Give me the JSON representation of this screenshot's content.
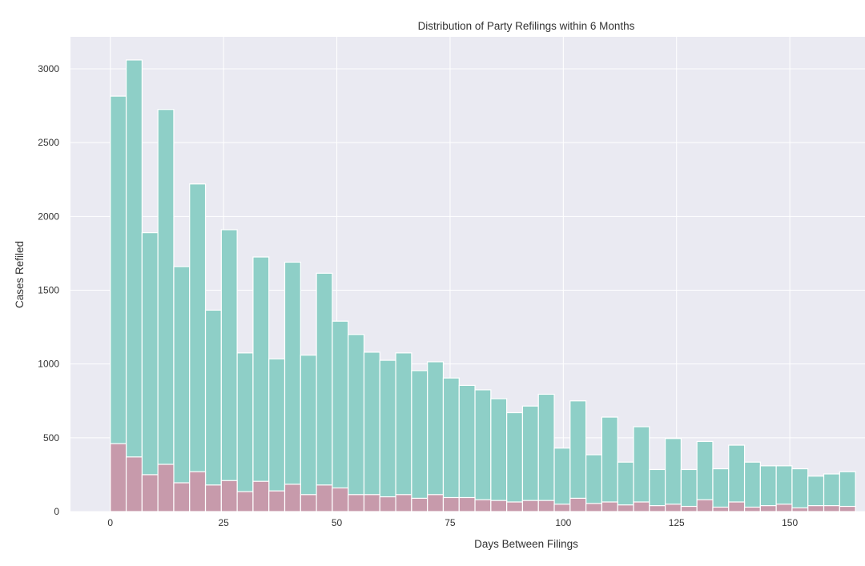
{
  "chart_data": {
    "type": "bar",
    "title": "Distribution of Party Refilings within 6 Months",
    "xlabel": "Days Between Filings",
    "ylabel": "Cases Refiled",
    "xlim": [
      -8.8,
      166.6
    ],
    "ylim": [
      0,
      3217
    ],
    "xticks": [
      0,
      25,
      50,
      75,
      100,
      125,
      150
    ],
    "yticks": [
      0,
      500,
      1000,
      1500,
      2000,
      2500,
      3000
    ],
    "grid": true,
    "bin_start": 0,
    "bin_width": 3.5,
    "series": [
      {
        "color": "#8ecfc7",
        "values": [
          2815,
          3060,
          1890,
          2725,
          1660,
          2220,
          1365,
          1910,
          1075,
          1725,
          1035,
          1690,
          1060,
          1615,
          1290,
          1200,
          1080,
          1025,
          1075,
          955,
          1015,
          905,
          855,
          825,
          765,
          670,
          715,
          795,
          430,
          750,
          385,
          640,
          335,
          575,
          285,
          495,
          285,
          475,
          290,
          450,
          335,
          310,
          310,
          290,
          240,
          255,
          270
        ]
      },
      {
        "color": "#c79aab",
        "values": [
          460,
          370,
          250,
          320,
          195,
          270,
          180,
          210,
          135,
          205,
          140,
          185,
          115,
          180,
          160,
          115,
          115,
          100,
          115,
          90,
          115,
          95,
          95,
          80,
          75,
          65,
          75,
          75,
          50,
          90,
          55,
          65,
          45,
          65,
          40,
          50,
          35,
          80,
          30,
          65,
          30,
          40,
          50,
          25,
          40,
          40,
          35
        ]
      }
    ],
    "colors": {
      "background": "#eaeaf2",
      "grid": "#ffffff"
    }
  }
}
